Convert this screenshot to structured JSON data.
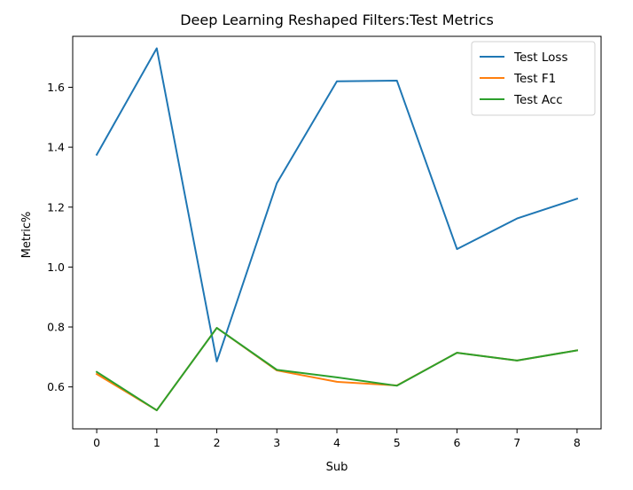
{
  "chart_data": {
    "type": "line",
    "title": "Deep Learning Reshaped Filters:Test Metrics",
    "xlabel": "Sub",
    "ylabel": "Metric%",
    "x": [
      0,
      1,
      2,
      3,
      4,
      5,
      6,
      7,
      8
    ],
    "xticks": [
      "0",
      "1",
      "2",
      "3",
      "4",
      "5",
      "6",
      "7",
      "8"
    ],
    "yticks": [
      "0.6",
      "0.8",
      "1.0",
      "1.2",
      "1.4",
      "1.6"
    ],
    "xlim": [
      -0.4,
      8.4
    ],
    "ylim": [
      0.46,
      1.77
    ],
    "grid": false,
    "legend": "top-right",
    "series": [
      {
        "name": "Test Loss",
        "color": "#1f77b4",
        "values": [
          1.375,
          1.73,
          0.685,
          1.28,
          1.62,
          1.622,
          1.06,
          1.162,
          1.228
        ]
      },
      {
        "name": "Test F1",
        "color": "#ff7f0e",
        "values": [
          0.643,
          0.522,
          0.797,
          0.655,
          0.617,
          0.605,
          0.714,
          0.688,
          0.722
        ]
      },
      {
        "name": "Test Acc",
        "color": "#2ca02c",
        "values": [
          0.65,
          0.522,
          0.797,
          0.657,
          0.632,
          0.604,
          0.714,
          0.688,
          0.722
        ]
      }
    ]
  }
}
